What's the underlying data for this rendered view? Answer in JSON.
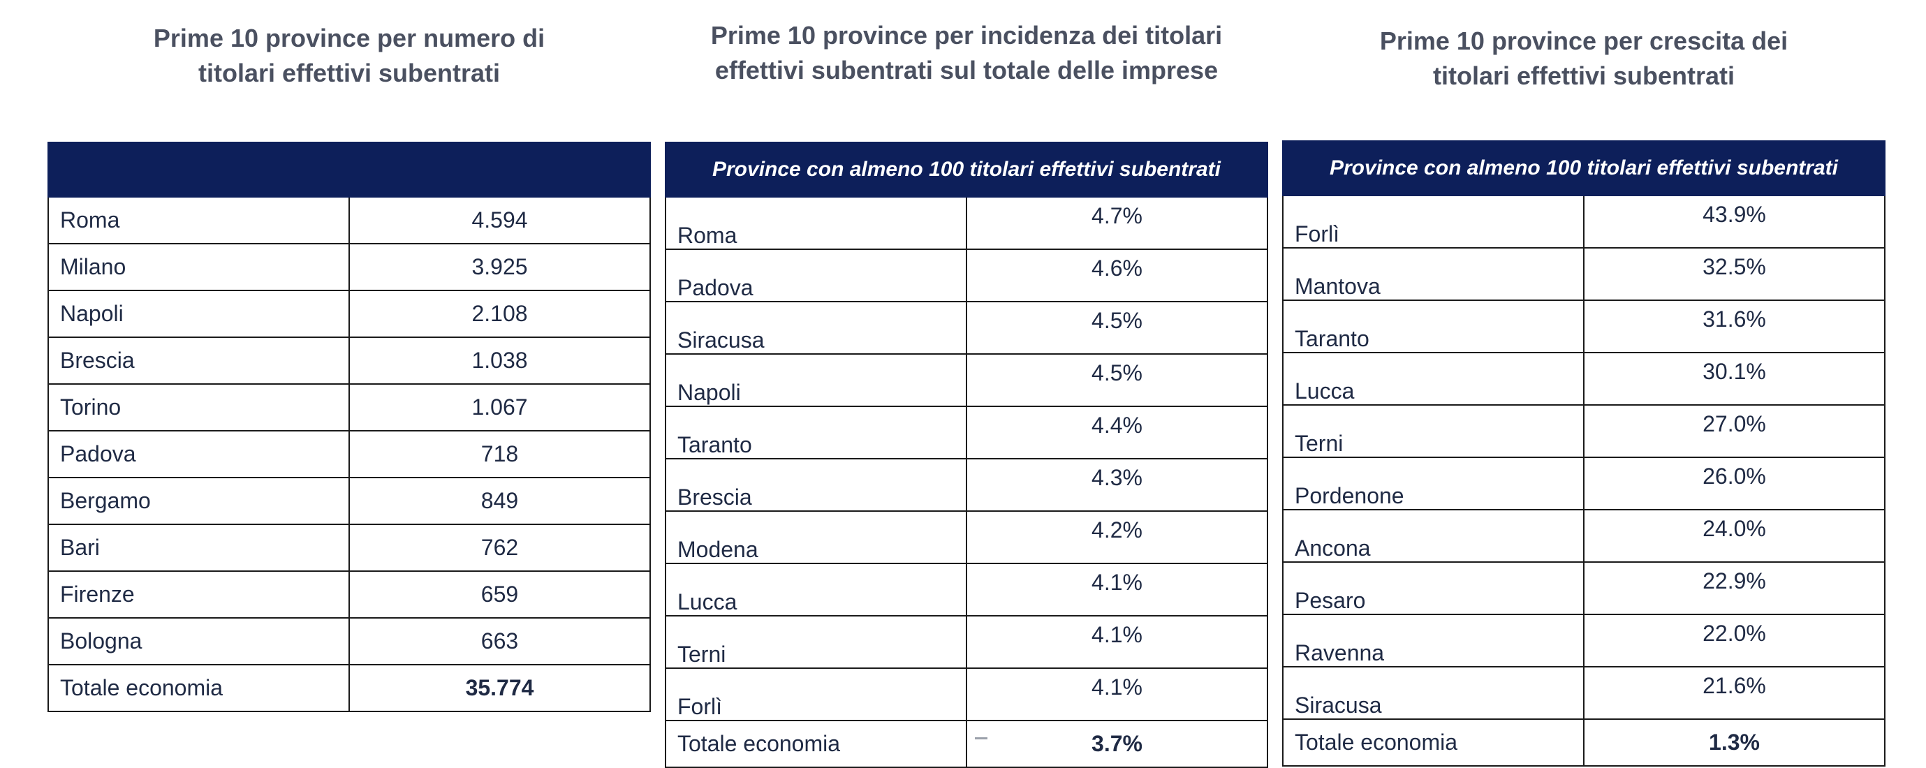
{
  "panels": [
    {
      "title": "Prime 10 province per numero di titolari effettivi subentrati",
      "header": "",
      "rows": [
        {
          "name": "Roma",
          "value": "4.594"
        },
        {
          "name": "Milano",
          "value": "3.925"
        },
        {
          "name": "Napoli",
          "value": "2.108"
        },
        {
          "name": "Brescia",
          "value": "1.038"
        },
        {
          "name": "Torino",
          "value": "1.067"
        },
        {
          "name": "Padova",
          "value": "718"
        },
        {
          "name": "Bergamo",
          "value": "849"
        },
        {
          "name": "Bari",
          "value": "762"
        },
        {
          "name": "Firenze",
          "value": "659"
        },
        {
          "name": "Bologna",
          "value": "663"
        }
      ],
      "total": {
        "name": "Totale economia",
        "value": "35.774"
      }
    },
    {
      "title": "Prime 10 province per incidenza dei titolari effettivi subentrati sul totale delle imprese",
      "header": "Province con almeno 100 titolari effettivi subentrati",
      "rows": [
        {
          "name": "Roma",
          "value": "4.7%"
        },
        {
          "name": "Padova",
          "value": "4.6%"
        },
        {
          "name": "Siracusa",
          "value": "4.5%"
        },
        {
          "name": "Napoli",
          "value": "4.5%"
        },
        {
          "name": "Taranto",
          "value": "4.4%"
        },
        {
          "name": "Brescia",
          "value": "4.3%"
        },
        {
          "name": "Modena",
          "value": "4.2%"
        },
        {
          "name": "Lucca",
          "value": "4.1%"
        },
        {
          "name": "Terni",
          "value": "4.1%"
        },
        {
          "name": "Forlì",
          "value": "4.1%"
        }
      ],
      "total": {
        "name": "Totale economia",
        "value": "3.7%"
      }
    },
    {
      "title": "Prime 10 province per crescita dei titolari effettivi subentrati",
      "header": "Province con almeno 100 titolari effettivi subentrati",
      "rows": [
        {
          "name": "Forlì",
          "value": "43.9%"
        },
        {
          "name": "Mantova",
          "value": "32.5%"
        },
        {
          "name": "Taranto",
          "value": "31.6%"
        },
        {
          "name": "Lucca",
          "value": "30.1%"
        },
        {
          "name": "Terni",
          "value": "27.0%"
        },
        {
          "name": "Pordenone",
          "value": "26.0%"
        },
        {
          "name": "Ancona",
          "value": "24.0%"
        },
        {
          "name": "Pesaro",
          "value": "22.9%"
        },
        {
          "name": "Ravenna",
          "value": "22.0%"
        },
        {
          "name": "Siracusa",
          "value": "21.6%"
        }
      ],
      "total": {
        "name": "Totale economia",
        "value": "1.3%"
      }
    }
  ]
}
